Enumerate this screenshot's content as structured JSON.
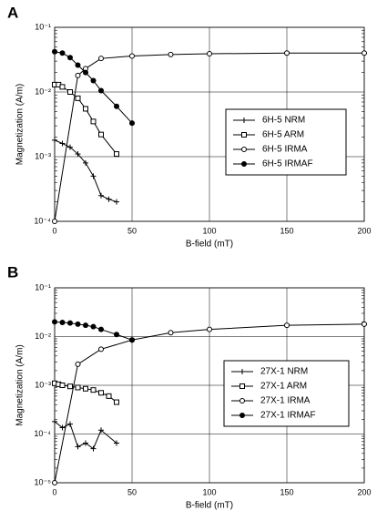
{
  "chart_data": [
    {
      "type": "line",
      "label": "A",
      "x_label": "B-field (mT)",
      "y_label": "Magnetization (A/m)",
      "log_y": true,
      "grid": true,
      "xlim": [
        0,
        200
      ],
      "xticks": [
        0,
        50,
        100,
        150,
        200
      ],
      "ylim": [
        0.0001,
        0.1
      ],
      "yticks": [
        {
          "value": 0.0001,
          "label": "10⁻⁴"
        },
        {
          "value": 0.001,
          "label": "10⁻³"
        },
        {
          "value": 0.01,
          "label": "10⁻²"
        },
        {
          "value": 0.1,
          "label": "10⁻¹"
        }
      ],
      "series": [
        {
          "name": "6H-5 NRM",
          "color": "#000000",
          "marker": "plus",
          "x": [
            0,
            5,
            10,
            15,
            20,
            25,
            30,
            35,
            40
          ],
          "values": [
            0.0018,
            0.0016,
            0.0014,
            0.0011,
            0.0008,
            0.0005,
            0.00025,
            0.00022,
            0.0002
          ]
        },
        {
          "name": "6H-5 ARM",
          "color": "#000000",
          "marker": "square",
          "x": [
            0,
            2.5,
            5,
            10,
            15,
            20,
            25,
            30,
            40
          ],
          "values": [
            0.013,
            0.013,
            0.012,
            0.01,
            0.008,
            0.0055,
            0.0035,
            0.0022,
            0.0011
          ]
        },
        {
          "name": "6H-5 IRMA",
          "color": "#000000",
          "marker": "diamond",
          "x": [
            0,
            15,
            20,
            30,
            50,
            75,
            100,
            150,
            200
          ],
          "values": [
            0.0001,
            0.018,
            0.023,
            0.033,
            0.036,
            0.038,
            0.039,
            0.04,
            0.04
          ]
        },
        {
          "name": "6H-5 IRMAF",
          "color": "#000000",
          "marker": "dot",
          "x": [
            0,
            5,
            10,
            15,
            20,
            25,
            30,
            40,
            50
          ],
          "values": [
            0.042,
            0.04,
            0.034,
            0.026,
            0.02,
            0.015,
            0.0105,
            0.006,
            0.0033
          ]
        }
      ]
    },
    {
      "type": "line",
      "label": "B",
      "x_label": "B-field (mT)",
      "y_label": "Magnetization (A/m)",
      "log_y": true,
      "grid": true,
      "xlim": [
        0,
        200
      ],
      "xticks": [
        0,
        50,
        100,
        150,
        200
      ],
      "ylim": [
        1e-05,
        0.1
      ],
      "yticks": [
        {
          "value": 1e-05,
          "label": "10⁻⁵"
        },
        {
          "value": 0.0001,
          "label": "10⁻⁴"
        },
        {
          "value": 0.001,
          "label": "10⁻³"
        },
        {
          "value": 0.01,
          "label": "10⁻²"
        },
        {
          "value": 0.1,
          "label": "10⁻¹"
        }
      ],
      "series": [
        {
          "name": "27X-1 NRM",
          "color": "#000000",
          "marker": "plus",
          "x": [
            0,
            5,
            10,
            15,
            20,
            25,
            30,
            40
          ],
          "values": [
            0.00018,
            0.000135,
            0.00016,
            5.5e-05,
            6.5e-05,
            5e-05,
            0.00012,
            6.5e-05
          ]
        },
        {
          "name": "27X-1 ARM",
          "color": "#000000",
          "marker": "square",
          "x": [
            0,
            2.5,
            5,
            10,
            15,
            20,
            25,
            30,
            35,
            40
          ],
          "values": [
            0.0011,
            0.00105,
            0.001,
            0.00095,
            0.0009,
            0.00085,
            0.0008,
            0.0007,
            0.0006,
            0.00045
          ]
        },
        {
          "name": "27X-1 IRMA",
          "color": "#000000",
          "marker": "diamond",
          "x": [
            0,
            15,
            30,
            50,
            75,
            100,
            150,
            200
          ],
          "values": [
            1e-05,
            0.0027,
            0.0055,
            0.0085,
            0.012,
            0.014,
            0.017,
            0.018
          ]
        },
        {
          "name": "27X-1 IRMAF",
          "color": "#000000",
          "marker": "dot",
          "x": [
            0,
            5,
            10,
            15,
            20,
            25,
            30,
            40,
            50
          ],
          "values": [
            0.02,
            0.0195,
            0.019,
            0.018,
            0.017,
            0.016,
            0.014,
            0.011,
            0.0085
          ]
        }
      ]
    }
  ]
}
